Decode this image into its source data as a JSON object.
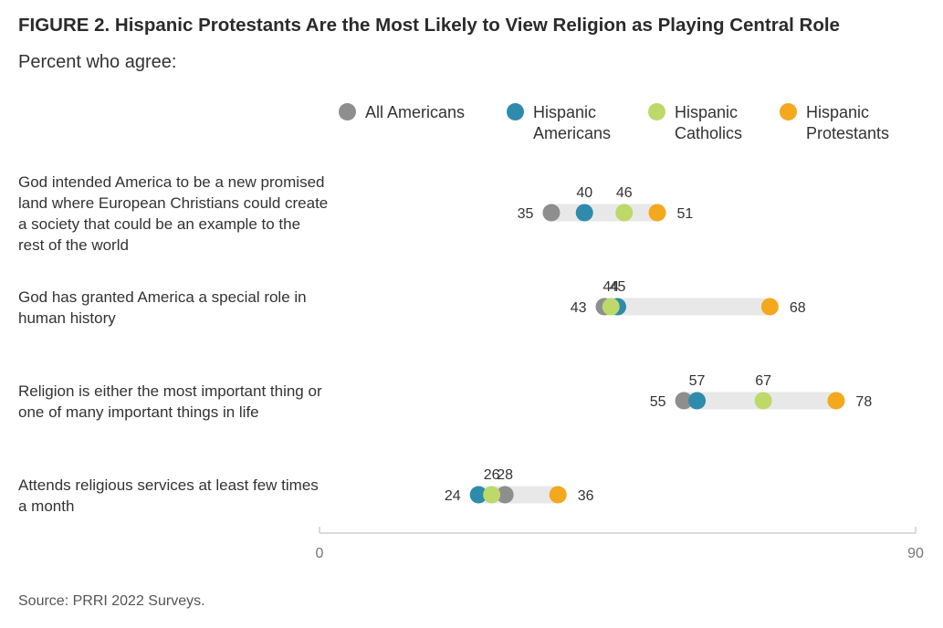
{
  "header": {
    "title": "FIGURE 2.  Hispanic Protestants Are the Most Likely to View Religion as Playing Central Role",
    "subtitle": "Percent who agree:"
  },
  "legend": [
    {
      "name": "All Americans",
      "color": "#8e8e8e"
    },
    {
      "name": "Hispanic\nAmericans",
      "color": "#2e8bab"
    },
    {
      "name": "Hispanic\nCatholics",
      "color": "#bcd96a"
    },
    {
      "name": "Hispanic\nProtestants",
      "color": "#f4a81d"
    }
  ],
  "footer": {
    "source": "Source: PRRI 2022 Surveys."
  },
  "chart_data": {
    "type": "dot",
    "title": "FIGURE 2.  Hispanic Protestants Are the Most Likely to View Religion as Playing Central Role",
    "subtitle": "Percent who agree:",
    "xlim": [
      0,
      90
    ],
    "x_ticks": [
      "0",
      "90"
    ],
    "legend_position": "top",
    "grid": false,
    "categories": [
      "God intended America to be a new promised land where European Christians could create a society that could be an example to the rest of the world",
      "God has granted America a special role in human history",
      "Religion is either the most important thing or one of many important things in life",
      "Attends religious services at least few times a month"
    ],
    "series": [
      {
        "name": "All Americans",
        "color": "#8e8e8e",
        "values": [
          35,
          43,
          55,
          28
        ]
      },
      {
        "name": "Hispanic Americans",
        "color": "#2e8bab",
        "values": [
          40,
          45,
          57,
          24
        ]
      },
      {
        "name": "Hispanic Catholics",
        "color": "#bcd96a",
        "values": [
          46,
          44,
          67,
          26
        ]
      },
      {
        "name": "Hispanic Protestants",
        "color": "#f4a81d",
        "values": [
          51,
          68,
          78,
          36
        ]
      }
    ]
  }
}
